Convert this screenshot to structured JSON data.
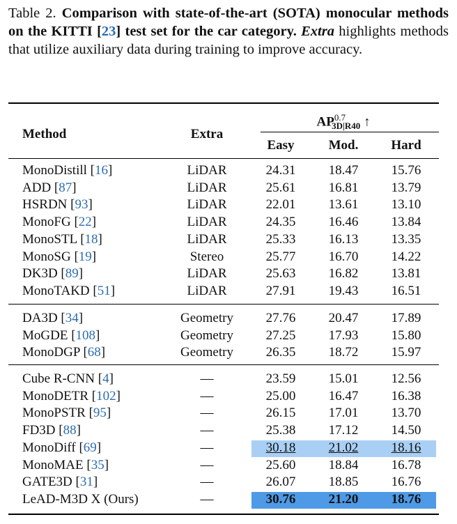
{
  "caption": {
    "label": "Table 2.",
    "bold_text": "Comparison with state-of-the-art (SOTA) monocular methods on the KITTI",
    "cite": "23",
    "bold_tail": "test set for the car category.",
    "italic_word": "Extra",
    "rest": "highlights methods that utilize auxiliary data during training to improve accuracy."
  },
  "header": {
    "method": "Method",
    "extra": "Extra",
    "ap_main": "AP",
    "ap_sup": "0.7",
    "ap_sub": "3D|R40",
    "arrow": "↑",
    "easy": "Easy",
    "mod": "Mod.",
    "hard": "Hard"
  },
  "groups": [
    [
      {
        "method": "MonoDistill",
        "cite": "16",
        "extra": "LiDAR",
        "easy": "24.31",
        "mod": "18.47",
        "hard": "15.76"
      },
      {
        "method": "ADD",
        "cite": "87",
        "extra": "LiDAR",
        "easy": "25.61",
        "mod": "16.81",
        "hard": "13.79"
      },
      {
        "method": "HSRDN",
        "cite": "93",
        "extra": "LiDAR",
        "easy": "22.01",
        "mod": "13.61",
        "hard": "13.10"
      },
      {
        "method": "MonoFG",
        "cite": "22",
        "extra": "LiDAR",
        "easy": "24.35",
        "mod": "16.46",
        "hard": "13.84"
      },
      {
        "method": "MonoSTL",
        "cite": "18",
        "extra": "LiDAR",
        "easy": "25.33",
        "mod": "16.13",
        "hard": "13.35"
      },
      {
        "method": "MonoSG",
        "cite": "19",
        "extra": "Stereo",
        "easy": "25.77",
        "mod": "16.70",
        "hard": "14.22"
      },
      {
        "method": "DK3D",
        "cite": "89",
        "extra": "LiDAR",
        "easy": "25.63",
        "mod": "16.82",
        "hard": "13.81"
      },
      {
        "method": "MonoTAKD",
        "cite": "51",
        "extra": "LiDAR",
        "easy": "27.91",
        "mod": "19.43",
        "hard": "16.51"
      }
    ],
    [
      {
        "method": "DA3D",
        "cite": "34",
        "extra": "Geometry",
        "easy": "27.76",
        "mod": "20.47",
        "hard": "17.89"
      },
      {
        "method": "MoGDE",
        "cite": "108",
        "extra": "Geometry",
        "easy": "27.25",
        "mod": "17.93",
        "hard": "15.80"
      },
      {
        "method": "MonoDGP",
        "cite": "68",
        "extra": "Geometry",
        "easy": "26.35",
        "mod": "18.72",
        "hard": "15.97"
      }
    ],
    [
      {
        "method": "Cube R-CNN",
        "cite": "4",
        "extra": "—",
        "easy": "23.59",
        "mod": "15.01",
        "hard": "12.56"
      },
      {
        "method": "MonoDETR",
        "cite": "102",
        "extra": "—",
        "easy": "25.00",
        "mod": "16.47",
        "hard": "16.38"
      },
      {
        "method": "MonoPSTR",
        "cite": "95",
        "extra": "—",
        "easy": "26.15",
        "mod": "17.01",
        "hard": "13.70"
      },
      {
        "method": "FD3D",
        "cite": "88",
        "extra": "—",
        "easy": "25.38",
        "mod": "17.12",
        "hard": "14.50"
      },
      {
        "method": "MonoDiff",
        "cite": "69",
        "extra": "—",
        "easy": "30.18",
        "mod": "21.02",
        "hard": "18.16",
        "style": "second"
      },
      {
        "method": "MonoMAE",
        "cite": "35",
        "extra": "—",
        "easy": "25.60",
        "mod": "18.84",
        "hard": "16.78"
      },
      {
        "method": "GATE3D",
        "cite": "31",
        "extra": "—",
        "easy": "26.07",
        "mod": "18.85",
        "hard": "16.76"
      },
      {
        "method": "LeAD-M3D X (Ours)",
        "cite": "",
        "extra": "—",
        "easy": "30.76",
        "mod": "21.20",
        "hard": "18.76",
        "style": "best"
      }
    ]
  ],
  "colors": {
    "cite": "#2b6cb0",
    "second_highlight": "#aacff4",
    "best_highlight": "#4e9ae6"
  }
}
